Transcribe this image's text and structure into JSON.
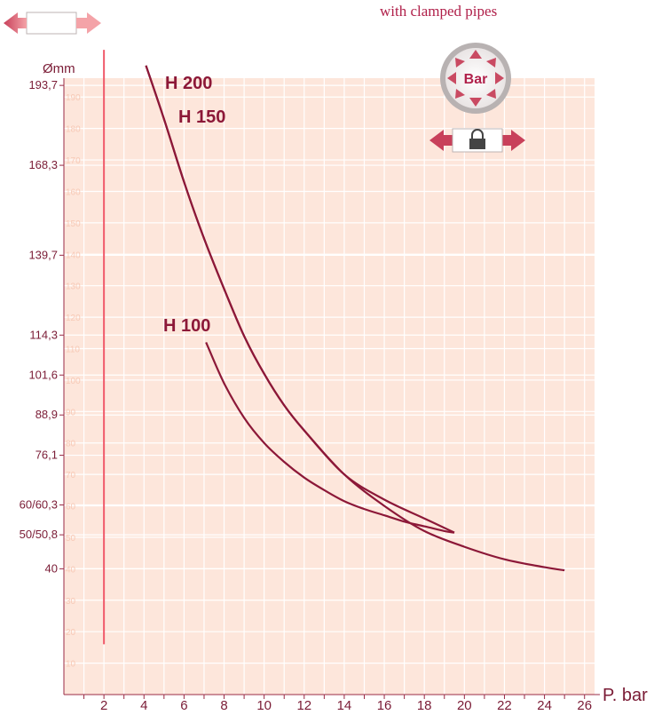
{
  "title": "with clamped pipes",
  "badge_label": "Bar",
  "colors": {
    "plot_background": "#fde6db",
    "gridline": "#ffffff",
    "curve": "#8c1838",
    "limit_line": "#f05a6a",
    "text": "#7a1b35",
    "title": "#b0204a"
  },
  "icons": [
    "expanding-pipe-icon",
    "pressure-bar-icon",
    "clamped-pipe-lock-icon"
  ],
  "chart_data": {
    "type": "line",
    "xlabel": "P. bar",
    "ylabel": "Ømm",
    "xlim": [
      0,
      26.5
    ],
    "ylim": [
      0,
      196
    ],
    "grid": true,
    "xticks": [
      {
        "value": 2,
        "label": "2"
      },
      {
        "value": 4,
        "label": "4"
      },
      {
        "value": 6,
        "label": "6"
      },
      {
        "value": 8,
        "label": "8"
      },
      {
        "value": 10,
        "label": "10"
      },
      {
        "value": 12,
        "label": "12"
      },
      {
        "value": 14,
        "label": "14"
      },
      {
        "value": 16,
        "label": "16"
      },
      {
        "value": 18,
        "label": "18"
      },
      {
        "value": 20,
        "label": "20"
      },
      {
        "value": 22,
        "label": "22"
      },
      {
        "value": 24,
        "label": "24"
      },
      {
        "value": 26,
        "label": "26"
      }
    ],
    "yticks": [
      {
        "value": 193.7,
        "label": "193,7"
      },
      {
        "value": 168.3,
        "label": "168,3"
      },
      {
        "value": 139.7,
        "label": "139,7"
      },
      {
        "value": 114.3,
        "label": "114,3"
      },
      {
        "value": 101.6,
        "label": "101,6"
      },
      {
        "value": 88.9,
        "label": "88,9"
      },
      {
        "value": 76.1,
        "label": "76,1"
      },
      {
        "value": 60.3,
        "label": "60/60,3"
      },
      {
        "value": 50.8,
        "label": "50/50,8"
      },
      {
        "value": 40,
        "label": "40"
      }
    ],
    "inner_scale": [
      10,
      20,
      30,
      40,
      50,
      60,
      70,
      80,
      90,
      100,
      110,
      120,
      130,
      140,
      150,
      160,
      170,
      180,
      190
    ],
    "reference_line": {
      "x": 2,
      "y_from": 16,
      "y_to": 205
    },
    "series": [
      {
        "name": "H 200",
        "x": [
          4.1,
          5,
          6,
          7,
          8,
          9,
          10,
          11,
          12,
          14,
          16,
          18,
          20,
          22,
          24,
          25
        ],
        "y": [
          200,
          183,
          163,
          145,
          129,
          114,
          102,
          92,
          84,
          70,
          60,
          52,
          47,
          43,
          40.5,
          39.5
        ]
      },
      {
        "name": "H 150",
        "x": [
          4.1,
          5,
          6,
          7,
          8,
          9,
          10,
          11,
          12,
          14,
          16,
          18,
          19.5
        ],
        "y": [
          200,
          183,
          163,
          145,
          129,
          114,
          102,
          92,
          84,
          70,
          62,
          56,
          51.5
        ]
      },
      {
        "name": "H 100",
        "x": [
          7.1,
          8,
          9,
          10,
          11,
          12,
          13,
          14,
          15,
          16,
          17,
          18,
          19,
          19.5
        ],
        "y": [
          112,
          99,
          88,
          80,
          74,
          69,
          65,
          61.5,
          59,
          57,
          55,
          53.5,
          52,
          51.5
        ]
      }
    ]
  }
}
